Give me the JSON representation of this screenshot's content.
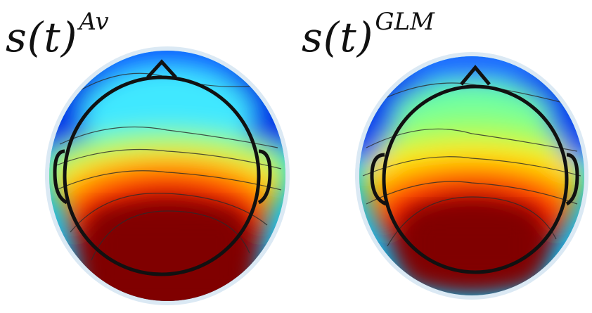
{
  "panels": [
    {
      "id": "average",
      "label_main": "s(t)",
      "label_superscript": "Av"
    },
    {
      "id": "glm",
      "label_main": "s(t)",
      "label_superscript": "GLM"
    }
  ],
  "colormap": [
    "#00008f",
    "#0050ff",
    "#00dfff",
    "#7fff7f",
    "#ffdf00",
    "#ff3000",
    "#800000"
  ]
}
